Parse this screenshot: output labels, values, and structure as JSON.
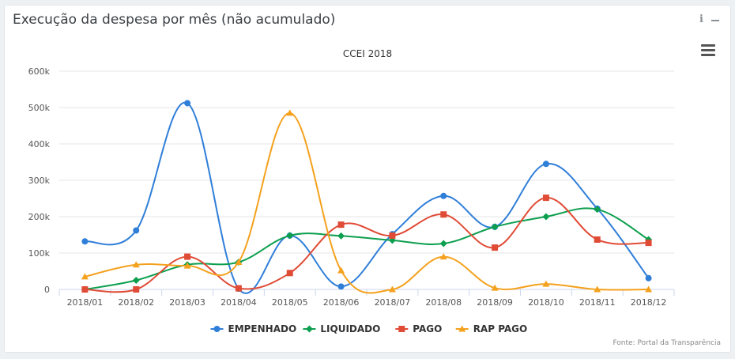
{
  "panel": {
    "title": "Execução da despesa por mês (não acumulado)",
    "info_label": "i",
    "source": "Fonte: Portal da Transparência"
  },
  "icons": {
    "info": "info-icon",
    "collapse": "minus-icon",
    "menu": "hamburger-menu-icon"
  },
  "chart_data": {
    "type": "line",
    "title": "CCEI 2018",
    "xlabel": "",
    "ylabel": "",
    "categories": [
      "2018/01",
      "2018/02",
      "2018/03",
      "2018/04",
      "2018/05",
      "2018/06",
      "2018/07",
      "2018/08",
      "2018/09",
      "2018/10",
      "2018/11",
      "2018/12"
    ],
    "ylim": [
      0,
      600000
    ],
    "yticks": [
      0,
      100000,
      200000,
      300000,
      400000,
      500000,
      600000
    ],
    "ytick_labels": [
      "0",
      "100k",
      "200k",
      "300k",
      "400k",
      "500k",
      "600k"
    ],
    "grid": true,
    "legend_position": "bottom",
    "series": [
      {
        "name": "EMPENHADO",
        "color": "#2f7ed8",
        "marker": "circle",
        "values": [
          132000,
          162000,
          512000,
          2000,
          148000,
          8000,
          152000,
          257000,
          172000,
          345000,
          222000,
          31000
        ]
      },
      {
        "name": "LIQUIDADO",
        "color": "#0d9f4f",
        "marker": "diamond",
        "values": [
          0,
          25000,
          68000,
          75000,
          148000,
          147000,
          135000,
          126000,
          172000,
          200000,
          220000,
          137000
        ]
      },
      {
        "name": "PAGO",
        "color": "#e04b36",
        "marker": "square",
        "values": [
          0,
          0,
          90000,
          3000,
          45000,
          178000,
          148000,
          206000,
          115000,
          252000,
          137000,
          128000
        ]
      },
      {
        "name": "RAP PAGO",
        "color": "#f4a11d",
        "marker": "triangle",
        "values": [
          35000,
          68000,
          65000,
          75000,
          485000,
          52000,
          0,
          90000,
          4000,
          15000,
          0,
          0
        ]
      }
    ]
  }
}
